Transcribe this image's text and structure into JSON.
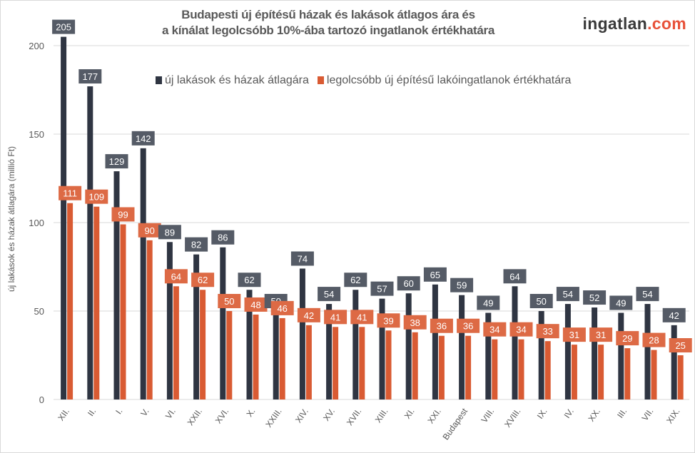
{
  "logo": {
    "main": "ingatlan",
    "suffix": ".com"
  },
  "chart_data": {
    "type": "bar",
    "title_line1": "Budapesti új építésű házak és lakások átlagos ára és",
    "title_line2": "a kínálat legolcsóbb 10%-ába tartozó ingatlanok értékhatára",
    "xlabel": "",
    "ylabel": "új lakások és házak átlagára (millió Ft)",
    "ylim": [
      0,
      210
    ],
    "yticks": [
      0,
      50,
      100,
      150,
      200
    ],
    "grid": true,
    "legend_position": "top",
    "categories": [
      "XII.",
      "II.",
      "I.",
      "V.",
      "VI.",
      "XXII.",
      "XVI.",
      "X.",
      "XXIII.",
      "XIV.",
      "XV.",
      "XVII.",
      "XIII.",
      "XI.",
      "XXI.",
      "Budapest",
      "VIII.",
      "XVIII.",
      "IX.",
      "IV.",
      "XX.",
      "III.",
      "VII.",
      "XIX."
    ],
    "series": [
      {
        "name": "új lakások és házak átlagára",
        "color": "#2f3542",
        "values": [
          205,
          177,
          129,
          142,
          89,
          82,
          86,
          62,
          50,
          74,
          54,
          62,
          57,
          60,
          65,
          59,
          49,
          64,
          50,
          54,
          52,
          49,
          54,
          42
        ]
      },
      {
        "name": "legolcsóbb új építésű lakóingatlanok értékhatára",
        "color": "#d95b33",
        "values": [
          111,
          109,
          99,
          90,
          64,
          62,
          50,
          48,
          46,
          42,
          41,
          41,
          39,
          38,
          36,
          36,
          34,
          34,
          33,
          31,
          31,
          29,
          28,
          25
        ]
      }
    ],
    "label_colors": [
      "#555b66",
      "#dd6a45"
    ]
  }
}
